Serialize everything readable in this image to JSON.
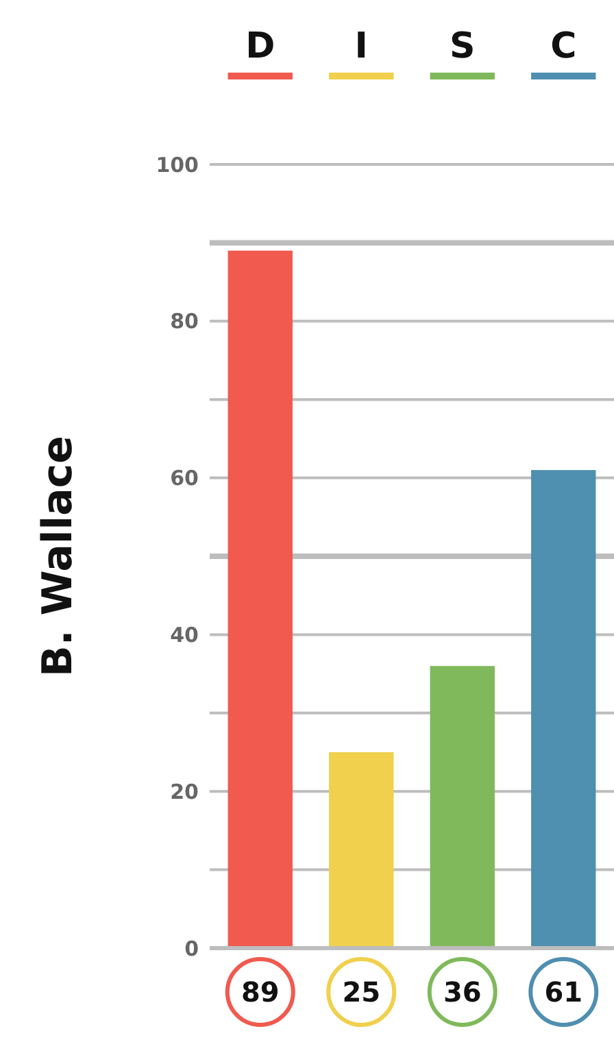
{
  "chart_data": {
    "type": "bar",
    "ylabel": "B. Wallace",
    "categories": [
      "D",
      "I",
      "S",
      "C"
    ],
    "values": [
      89,
      25,
      36,
      61
    ],
    "colors": [
      "#f05a4f",
      "#f0d04d",
      "#80b95b",
      "#4f8fb0"
    ],
    "ylim": [
      0,
      100
    ],
    "yticks": [
      0,
      {
        "value": 10,
        "label": null
      },
      20,
      {
        "value": 30,
        "label": null
      },
      40,
      60,
      {
        "value": 70,
        "label": null
      },
      80,
      100
    ],
    "grid": "y",
    "data_labels": true,
    "ref_lines": [
      {
        "axis": "y",
        "value": 50
      },
      {
        "axis": "y",
        "value": 90
      }
    ]
  }
}
